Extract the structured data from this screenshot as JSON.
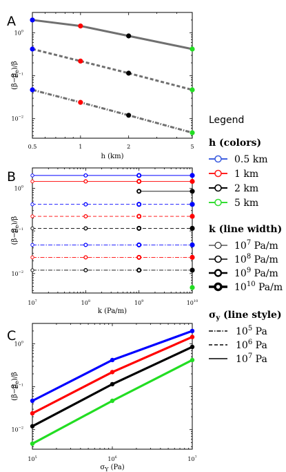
{
  "chart_data": [
    {
      "panel": "A",
      "type": "line",
      "xscale": "log",
      "yscale": "log",
      "xlim": [
        0.5,
        5
      ],
      "ylim": [
        0.0035,
        3
      ],
      "xlabel": "h (km)",
      "ylabel": "(β−β_e)/β_e",
      "x_ticks": [
        "0.5",
        "1",
        "2",
        "5"
      ],
      "y_ticks": [
        "10^0",
        "10^-1",
        "10^-2"
      ],
      "x": [
        0.5,
        1,
        2,
        5
      ],
      "point_colors": [
        "#0000ff",
        "#ff0000",
        "#000000",
        "#22dd22"
      ],
      "series": [
        {
          "style": "solid",
          "values": [
            2.0,
            1.45,
            0.85,
            0.42
          ]
        },
        {
          "style": "dashed",
          "values": [
            0.42,
            0.22,
            0.115,
            0.047
          ]
        },
        {
          "style": "dashdot",
          "values": [
            0.047,
            0.024,
            0.012,
            0.0047
          ]
        }
      ]
    },
    {
      "panel": "B",
      "type": "line",
      "xscale": "log",
      "yscale": "log",
      "xlim": [
        10000000,
        10000000000
      ],
      "ylim": [
        0.0035,
        3
      ],
      "xlabel": "k (Pa/m)",
      "ylabel": "(β−β_e)/β_e",
      "x_ticks": [
        "10^7",
        "10^8",
        "10^9",
        "10^10"
      ],
      "y_ticks": [
        "10^0",
        "10^-1",
        "10^-2"
      ],
      "x": [
        10000000,
        100000000,
        1000000000,
        10000000000
      ],
      "series": [
        {
          "h": "0.5 km",
          "sigma": "10^7",
          "color": "#0000ff",
          "style": "solid",
          "values": [
            2.0,
            2.0,
            2.0,
            2.0
          ]
        },
        {
          "h": "1 km",
          "sigma": "10^7",
          "color": "#ff0000",
          "style": "solid",
          "values": [
            1.45,
            1.45,
            1.45,
            1.45
          ]
        },
        {
          "h": "2 km",
          "sigma": "10^7",
          "color": "#000000",
          "style": "solid",
          "values": [
            null,
            null,
            0.85,
            0.85
          ]
        },
        {
          "h": "5 km",
          "sigma": "10^7",
          "color": "#22dd22",
          "style": "solid",
          "values": [
            null,
            null,
            null,
            0.42
          ]
        },
        {
          "h": "0.5 km",
          "sigma": "10^6",
          "color": "#0000ff",
          "style": "dashed",
          "values": [
            0.42,
            0.42,
            0.42,
            0.42
          ]
        },
        {
          "h": "1 km",
          "sigma": "10^6",
          "color": "#ff0000",
          "style": "dashed",
          "values": [
            0.22,
            0.22,
            0.22,
            0.22
          ]
        },
        {
          "h": "2 km",
          "sigma": "10^6",
          "color": "#000000",
          "style": "dashed",
          "values": [
            0.115,
            0.115,
            0.115,
            0.115
          ]
        },
        {
          "h": "5 km",
          "sigma": "10^6",
          "color": "#22dd22",
          "style": "dashed",
          "values": [
            null,
            null,
            null,
            0.047
          ]
        },
        {
          "h": "0.5 km",
          "sigma": "10^5",
          "color": "#0000ff",
          "style": "dashdot",
          "values": [
            0.047,
            0.047,
            0.047,
            0.047
          ]
        },
        {
          "h": "1 km",
          "sigma": "10^5",
          "color": "#ff0000",
          "style": "dashdot",
          "values": [
            0.024,
            0.024,
            0.024,
            0.024
          ]
        },
        {
          "h": "2 km",
          "sigma": "10^5",
          "color": "#000000",
          "style": "dashdot",
          "values": [
            0.012,
            0.012,
            0.012,
            0.012
          ]
        },
        {
          "h": "5 km",
          "sigma": "10^5",
          "color": "#22dd22",
          "style": "dashdot",
          "values": [
            null,
            null,
            null,
            0.0047
          ]
        }
      ]
    },
    {
      "panel": "C",
      "type": "line",
      "xscale": "log",
      "yscale": "log",
      "xlim": [
        100000,
        10000000
      ],
      "ylim": [
        0.0035,
        3
      ],
      "xlabel": "σ_Y (Pa)",
      "ylabel": "(β−β_e)/β_e",
      "x_ticks": [
        "10^5",
        "10^6",
        "10^7"
      ],
      "y_ticks": [
        "10^0",
        "10^-1",
        "10^-2"
      ],
      "x": [
        100000,
        1000000,
        10000000
      ],
      "series": [
        {
          "h": "0.5 km",
          "color": "#0000ff",
          "values": [
            0.047,
            0.42,
            2.0
          ]
        },
        {
          "h": "1 km",
          "color": "#ff0000",
          "values": [
            0.024,
            0.22,
            1.45
          ]
        },
        {
          "h": "2 km",
          "color": "#000000",
          "values": [
            0.012,
            0.115,
            0.85
          ]
        },
        {
          "h": "5 km",
          "color": "#22dd22",
          "values": [
            0.0047,
            0.047,
            0.42
          ]
        }
      ]
    }
  ],
  "panels": {
    "a": "A",
    "b": "B",
    "c": "C"
  },
  "legend": {
    "title": "Legend",
    "h_heading": "h (colors)",
    "h_items": [
      {
        "label": "0.5 km",
        "color": "#4060e0"
      },
      {
        "label": "1 km",
        "color": "#ff2020"
      },
      {
        "label": "2 km",
        "color": "#000000"
      },
      {
        "label": "5 km",
        "color": "#33dd33"
      }
    ],
    "k_heading": "k (line width)",
    "k_items": [
      {
        "base": "10",
        "exp": "7",
        "unit": " Pa/m"
      },
      {
        "base": "10",
        "exp": "8",
        "unit": " Pa/m"
      },
      {
        "base": "10",
        "exp": "9",
        "unit": " Pa/m"
      },
      {
        "base": "10",
        "exp": "10",
        "unit": " Pa/m"
      }
    ],
    "s_heading_symbol": "σ",
    "s_heading_sub": "y",
    "s_heading_rest": " (line style)",
    "s_items": [
      {
        "base": "10",
        "exp": "5",
        "unit": " Pa",
        "style": "dashdot"
      },
      {
        "base": "10",
        "exp": "6",
        "unit": " Pa",
        "style": "dashed"
      },
      {
        "base": "10",
        "exp": "7",
        "unit": " Pa",
        "style": "solid"
      }
    ]
  }
}
